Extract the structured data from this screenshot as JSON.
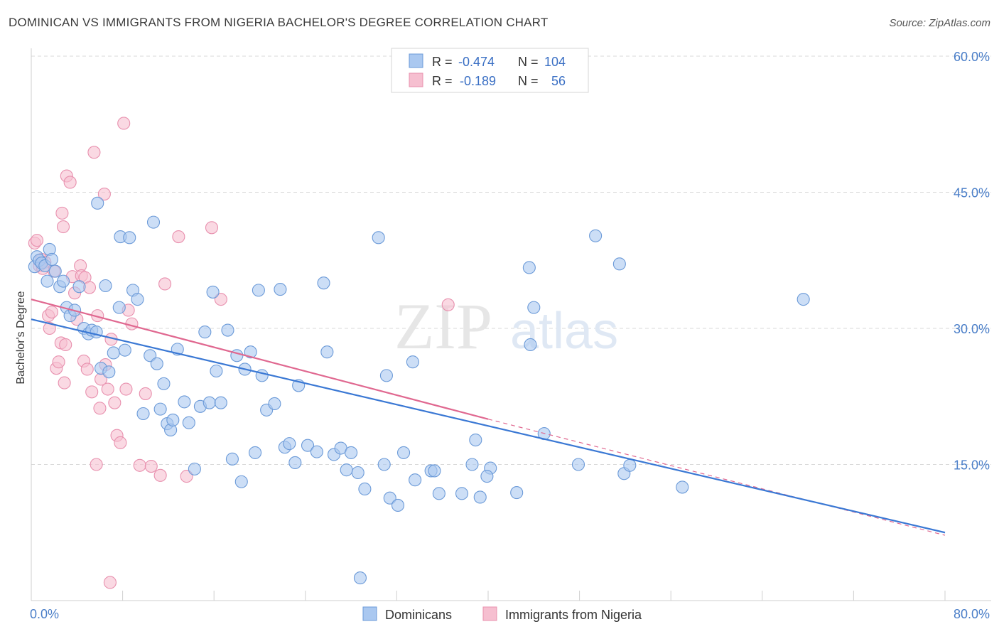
{
  "title": "DOMINICAN VS IMMIGRANTS FROM NIGERIA BACHELOR'S DEGREE CORRELATION CHART",
  "source": "Source: ZipAtlas.com",
  "watermark": {
    "zip": "ZIP",
    "atlas": "atlas"
  },
  "colors": {
    "blue_fill": "#aac8f0",
    "blue_stroke": "#6b9ad8",
    "blue_line": "#3a78d4",
    "pink_fill": "#f6bfd0",
    "pink_stroke": "#e890ae",
    "pink_line": "#e06890",
    "tick": "#4a7ec8",
    "grid": "#d9d9d9"
  },
  "legend": {
    "rows": [
      {
        "r_label": "R = ",
        "r_value": "-0.474",
        "n_label": "N = ",
        "n_value": "104"
      },
      {
        "r_label": "R = ",
        "r_value": "-0.189",
        "n_label": "N = ",
        "n_value": "56"
      }
    ]
  },
  "bottom_legend": [
    "Dominicans",
    "Immigrants from Nigeria"
  ],
  "chart_data": {
    "type": "scatter",
    "title": "DOMINICAN VS IMMIGRANTS FROM NIGERIA BACHELOR'S DEGREE CORRELATION CHART",
    "xlabel": "",
    "ylabel": "Bachelor's Degree",
    "xlim": [
      0,
      80
    ],
    "ylim": [
      0,
      60
    ],
    "x_tick_labels": [
      "0.0%",
      "80.0%"
    ],
    "y_ticks": [
      15,
      30,
      45,
      60
    ],
    "y_tick_labels": [
      "15.0%",
      "30.0%",
      "45.0%",
      "60.0%"
    ],
    "grid": true,
    "legend_position": "top-center",
    "series": [
      {
        "name": "Dominicans",
        "r": -0.474,
        "n": 104,
        "trend": {
          "x": [
            0,
            80
          ],
          "y": [
            31.0,
            7.5
          ]
        },
        "points": [
          [
            0.3,
            36.8
          ],
          [
            0.5,
            37.9
          ],
          [
            0.7,
            37.5
          ],
          [
            0.9,
            37.2
          ],
          [
            1.2,
            36.9
          ],
          [
            1.4,
            35.2
          ],
          [
            1.6,
            38.7
          ],
          [
            1.8,
            37.6
          ],
          [
            2.1,
            36.3
          ],
          [
            2.5,
            34.6
          ],
          [
            2.8,
            35.2
          ],
          [
            3.1,
            32.3
          ],
          [
            3.4,
            31.4
          ],
          [
            3.8,
            32.0
          ],
          [
            4.2,
            34.6
          ],
          [
            4.6,
            30.0
          ],
          [
            5.0,
            29.4
          ],
          [
            5.3,
            29.8
          ],
          [
            5.7,
            29.6
          ],
          [
            6.1,
            25.6
          ],
          [
            6.5,
            34.7
          ],
          [
            6.8,
            25.2
          ],
          [
            7.2,
            27.3
          ],
          [
            7.7,
            32.3
          ],
          [
            7.8,
            40.1
          ],
          [
            8.2,
            27.6
          ],
          [
            8.6,
            40.0
          ],
          [
            8.9,
            34.2
          ],
          [
            9.3,
            33.2
          ],
          [
            9.8,
            20.6
          ],
          [
            10.4,
            27.0
          ],
          [
            10.7,
            41.7
          ],
          [
            11.0,
            26.1
          ],
          [
            11.3,
            21.1
          ],
          [
            11.6,
            23.9
          ],
          [
            11.9,
            19.5
          ],
          [
            12.2,
            18.8
          ],
          [
            12.4,
            19.9
          ],
          [
            12.8,
            27.7
          ],
          [
            13.4,
            21.9
          ],
          [
            13.8,
            19.6
          ],
          [
            14.3,
            14.5
          ],
          [
            14.8,
            21.4
          ],
          [
            15.2,
            29.6
          ],
          [
            15.6,
            21.8
          ],
          [
            15.9,
            34.0
          ],
          [
            16.2,
            25.3
          ],
          [
            16.6,
            21.8
          ],
          [
            17.2,
            29.8
          ],
          [
            17.6,
            15.6
          ],
          [
            18.0,
            27.0
          ],
          [
            18.4,
            13.1
          ],
          [
            18.7,
            25.5
          ],
          [
            19.2,
            27.4
          ],
          [
            19.6,
            16.3
          ],
          [
            19.9,
            34.2
          ],
          [
            20.2,
            24.8
          ],
          [
            20.6,
            21.0
          ],
          [
            21.3,
            21.7
          ],
          [
            21.8,
            34.3
          ],
          [
            22.2,
            16.9
          ],
          [
            22.6,
            17.3
          ],
          [
            23.1,
            15.2
          ],
          [
            23.4,
            23.7
          ],
          [
            24.2,
            17.1
          ],
          [
            25.0,
            16.4
          ],
          [
            25.6,
            35.0
          ],
          [
            25.9,
            27.4
          ],
          [
            26.5,
            16.1
          ],
          [
            27.1,
            16.8
          ],
          [
            27.6,
            14.4
          ],
          [
            28.0,
            16.3
          ],
          [
            28.6,
            14.1
          ],
          [
            28.8,
            2.5
          ],
          [
            29.2,
            12.3
          ],
          [
            30.4,
            40.0
          ],
          [
            30.9,
            15.0
          ],
          [
            31.1,
            24.8
          ],
          [
            31.4,
            11.3
          ],
          [
            32.1,
            10.5
          ],
          [
            32.6,
            16.3
          ],
          [
            33.4,
            26.3
          ],
          [
            33.6,
            13.3
          ],
          [
            35.0,
            14.3
          ],
          [
            35.3,
            14.3
          ],
          [
            35.7,
            11.8
          ],
          [
            37.7,
            11.8
          ],
          [
            38.6,
            15.0
          ],
          [
            39.3,
            11.4
          ],
          [
            38.9,
            17.7
          ],
          [
            40.2,
            14.6
          ],
          [
            39.9,
            13.7
          ],
          [
            42.5,
            11.9
          ],
          [
            43.6,
            36.7
          ],
          [
            44.0,
            32.3
          ],
          [
            43.7,
            28.2
          ],
          [
            44.9,
            18.4
          ],
          [
            47.9,
            15.0
          ],
          [
            49.4,
            40.2
          ],
          [
            51.5,
            37.1
          ],
          [
            51.9,
            14.0
          ],
          [
            52.4,
            14.9
          ],
          [
            57.0,
            12.5
          ],
          [
            67.6,
            33.2
          ],
          [
            5.8,
            43.8
          ]
        ]
      },
      {
        "name": "Immigrants from Nigeria",
        "r": -0.189,
        "n": 56,
        "trend": {
          "x": [
            0,
            40
          ],
          "y": [
            33.2,
            20.0
          ]
        },
        "trend_dashed": {
          "x": [
            40,
            80
          ],
          "y": [
            20.0,
            7.2
          ]
        },
        "points": [
          [
            0.3,
            39.4
          ],
          [
            0.5,
            39.7
          ],
          [
            0.7,
            36.9
          ],
          [
            0.9,
            37.6
          ],
          [
            1.2,
            37.3
          ],
          [
            1.5,
            31.4
          ],
          [
            1.6,
            30.0
          ],
          [
            1.8,
            31.8
          ],
          [
            2.0,
            36.3
          ],
          [
            2.2,
            25.6
          ],
          [
            2.4,
            26.3
          ],
          [
            2.6,
            28.4
          ],
          [
            2.7,
            42.7
          ],
          [
            2.8,
            41.2
          ],
          [
            3.0,
            28.2
          ],
          [
            3.1,
            46.8
          ],
          [
            3.4,
            46.1
          ],
          [
            3.6,
            35.7
          ],
          [
            3.8,
            33.9
          ],
          [
            4.0,
            31.0
          ],
          [
            4.3,
            36.9
          ],
          [
            4.4,
            35.8
          ],
          [
            4.6,
            26.4
          ],
          [
            4.7,
            35.6
          ],
          [
            4.9,
            25.5
          ],
          [
            5.1,
            34.5
          ],
          [
            5.3,
            23.0
          ],
          [
            5.5,
            49.4
          ],
          [
            5.7,
            15.0
          ],
          [
            5.8,
            31.4
          ],
          [
            6.0,
            21.2
          ],
          [
            6.1,
            24.4
          ],
          [
            6.4,
            44.8
          ],
          [
            6.5,
            26.0
          ],
          [
            6.7,
            23.3
          ],
          [
            6.9,
            2.0
          ],
          [
            7.0,
            28.8
          ],
          [
            7.3,
            21.8
          ],
          [
            7.5,
            18.2
          ],
          [
            7.8,
            17.4
          ],
          [
            8.1,
            52.6
          ],
          [
            8.3,
            23.3
          ],
          [
            8.5,
            32.0
          ],
          [
            8.8,
            30.5
          ],
          [
            9.5,
            14.9
          ],
          [
            10.0,
            22.8
          ],
          [
            10.5,
            14.8
          ],
          [
            11.3,
            13.8
          ],
          [
            11.7,
            34.9
          ],
          [
            12.9,
            40.1
          ],
          [
            13.6,
            13.7
          ],
          [
            15.8,
            41.1
          ],
          [
            16.6,
            33.2
          ],
          [
            36.5,
            32.6
          ],
          [
            2.9,
            24.0
          ],
          [
            1.0,
            36.6
          ]
        ]
      }
    ]
  }
}
